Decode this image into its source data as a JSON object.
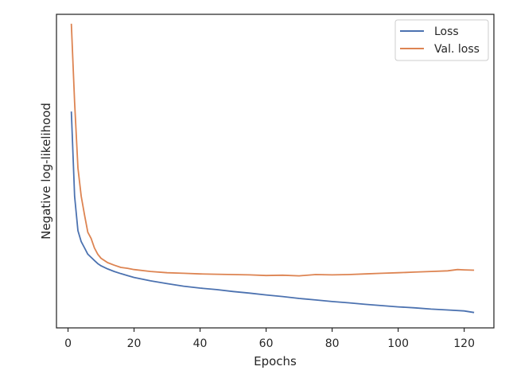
{
  "chart_data": {
    "type": "line",
    "title": "",
    "xlabel": "Epochs",
    "ylabel": "Negative log-likelihood",
    "xlim": [
      -3.5,
      129
    ],
    "ylim": [
      0,
      1
    ],
    "y_tick_labels_shown": false,
    "x_ticks": [
      0,
      20,
      40,
      60,
      80,
      100,
      120
    ],
    "legend_placement": "top-right",
    "grid": false,
    "series": [
      {
        "name": "Loss",
        "color": "#4c72b0",
        "x": [
          1,
          2,
          3,
          4,
          5,
          6,
          7,
          8,
          9,
          10,
          12,
          14,
          16,
          18,
          20,
          25,
          30,
          35,
          40,
          45,
          50,
          55,
          60,
          65,
          70,
          75,
          80,
          85,
          90,
          95,
          100,
          105,
          110,
          115,
          120,
          123
        ],
        "y": [
          0.69,
          0.42,
          0.31,
          0.275,
          0.255,
          0.235,
          0.225,
          0.215,
          0.205,
          0.198,
          0.188,
          0.18,
          0.173,
          0.167,
          0.161,
          0.15,
          0.141,
          0.133,
          0.127,
          0.122,
          0.116,
          0.111,
          0.105,
          0.1,
          0.094,
          0.089,
          0.084,
          0.08,
          0.075,
          0.071,
          0.067,
          0.064,
          0.06,
          0.057,
          0.054,
          0.049
        ]
      },
      {
        "name": "Val. loss",
        "color": "#dd8452",
        "x": [
          1,
          2,
          3,
          4,
          5,
          6,
          7,
          8,
          9,
          10,
          12,
          14,
          16,
          18,
          20,
          25,
          30,
          35,
          40,
          45,
          50,
          55,
          60,
          65,
          70,
          75,
          80,
          85,
          90,
          95,
          100,
          105,
          110,
          115,
          118,
          120,
          123
        ],
        "y": [
          0.97,
          0.72,
          0.51,
          0.42,
          0.36,
          0.305,
          0.285,
          0.255,
          0.235,
          0.222,
          0.208,
          0.2,
          0.193,
          0.19,
          0.186,
          0.18,
          0.176,
          0.174,
          0.172,
          0.171,
          0.17,
          0.169,
          0.167,
          0.168,
          0.166,
          0.17,
          0.169,
          0.17,
          0.172,
          0.174,
          0.176,
          0.178,
          0.18,
          0.182,
          0.186,
          0.185,
          0.184
        ]
      }
    ]
  }
}
